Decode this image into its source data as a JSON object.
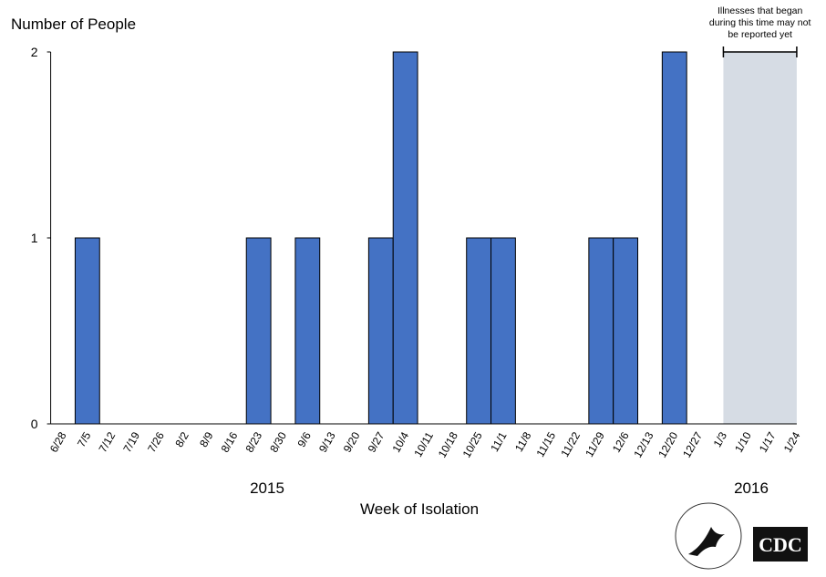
{
  "chart_data": {
    "type": "bar",
    "y_label": "Number of People",
    "x_label": "Week of Isolation",
    "categories": [
      "6/28",
      "7/5",
      "7/12",
      "7/19",
      "7/26",
      "8/2",
      "8/9",
      "8/16",
      "8/23",
      "8/30",
      "9/6",
      "9/13",
      "9/20",
      "9/27",
      "10/4",
      "10/11",
      "10/18",
      "10/25",
      "11/1",
      "11/8",
      "11/15",
      "11/22",
      "11/29",
      "12/6",
      "12/13",
      "12/20",
      "12/27",
      "1/3",
      "1/10",
      "1/17",
      "1/24"
    ],
    "values": [
      0,
      1,
      0,
      0,
      0,
      0,
      0,
      0,
      1,
      0,
      1,
      0,
      0,
      1,
      2,
      0,
      0,
      1,
      1,
      0,
      0,
      0,
      1,
      1,
      0,
      2,
      0,
      0,
      0,
      0,
      0
    ],
    "color": "#4472c4",
    "ylim": [
      0,
      2
    ],
    "yticks": [
      0,
      1,
      2
    ],
    "grid": false,
    "year_labels": [
      "2015",
      "2016"
    ],
    "shaded_region": {
      "from": "1/3",
      "to": "1/24",
      "color": "#d6dce4",
      "label": [
        "Illnesses that began",
        "during this time may not",
        "be reported yet"
      ]
    },
    "logo_text": "CDC"
  }
}
